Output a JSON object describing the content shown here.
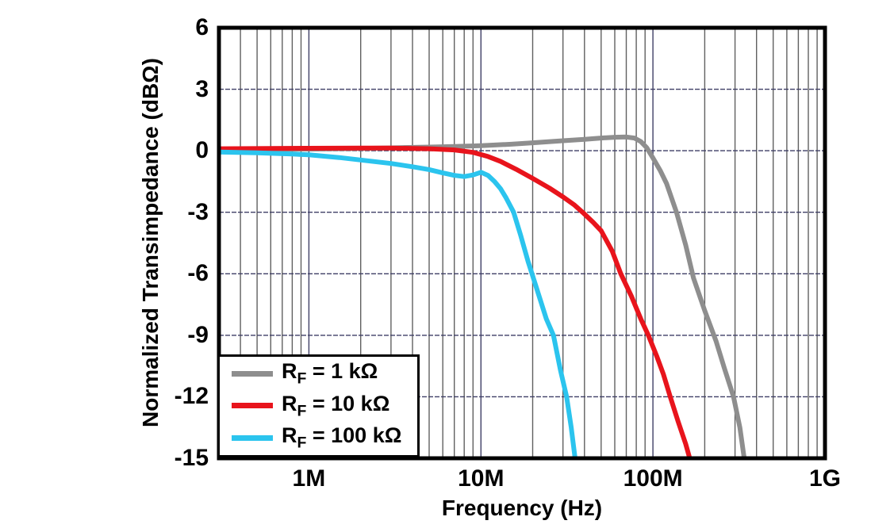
{
  "chart_data": {
    "type": "line",
    "x_axis": {
      "label": "Frequency (Hz)",
      "scale": "log",
      "min": 300000,
      "max": 1000000000,
      "major_ticks": [
        1000000,
        10000000,
        100000000,
        1000000000
      ],
      "tick_labels": [
        "1M",
        "10M",
        "100M",
        "1G"
      ]
    },
    "y_axis": {
      "label": "Normalized Transimpedance (dBΩ)",
      "min": -15,
      "max": 6,
      "tick_step": 3,
      "ticks": [
        6,
        3,
        0,
        -3,
        -6,
        -9,
        -12,
        -15
      ]
    },
    "grid": {
      "minor_color": "#606060",
      "major_color": "#3f3f66",
      "frame_color": "#000000",
      "background": "#ffffff"
    },
    "legend": {
      "position": "bottom-left"
    },
    "series": [
      {
        "name": "RF = 1 kΩ",
        "legend": {
          "base": "R",
          "sub": "F",
          "rest": " = 1 kΩ"
        },
        "color": "#8e8e8e",
        "points": [
          [
            300000,
            0.05
          ],
          [
            500000,
            0.06
          ],
          [
            1000000,
            0.08
          ],
          [
            2000000,
            0.11
          ],
          [
            3000000,
            0.14
          ],
          [
            5000000,
            0.18
          ],
          [
            7000000,
            0.21
          ],
          [
            10000000,
            0.25
          ],
          [
            15000000,
            0.32
          ],
          [
            20000000,
            0.39
          ],
          [
            30000000,
            0.49
          ],
          [
            40000000,
            0.56
          ],
          [
            50000000,
            0.62
          ],
          [
            60000000,
            0.66
          ],
          [
            70000000,
            0.67
          ],
          [
            78000000,
            0.62
          ],
          [
            85000000,
            0.45
          ],
          [
            92000000,
            0.15
          ],
          [
            100000000,
            -0.35
          ],
          [
            110000000,
            -0.95
          ],
          [
            120000000,
            -1.6
          ],
          [
            137000000,
            -3.0
          ],
          [
            155000000,
            -4.6
          ],
          [
            172000000,
            -6.2
          ],
          [
            200000000,
            -7.8
          ],
          [
            233000000,
            -9.3
          ],
          [
            260000000,
            -10.6
          ],
          [
            294000000,
            -12.0
          ],
          [
            320000000,
            -13.5
          ],
          [
            342000000,
            -15.2
          ]
        ]
      },
      {
        "name": "RF = 10 kΩ",
        "legend": {
          "base": "R",
          "sub": "F",
          "rest": " = 10 kΩ"
        },
        "color": "#e8141c",
        "points": [
          [
            300000,
            0.1
          ],
          [
            1000000,
            0.12
          ],
          [
            2000000,
            0.13
          ],
          [
            3000000,
            0.13
          ],
          [
            5000000,
            0.1
          ],
          [
            7000000,
            0.04
          ],
          [
            9000000,
            -0.08
          ],
          [
            11000000,
            -0.28
          ],
          [
            13000000,
            -0.52
          ],
          [
            16000000,
            -0.9
          ],
          [
            20000000,
            -1.35
          ],
          [
            25000000,
            -1.82
          ],
          [
            30000000,
            -2.25
          ],
          [
            35000000,
            -2.65
          ],
          [
            39000000,
            -3.0
          ],
          [
            45000000,
            -3.5
          ],
          [
            50000000,
            -3.9
          ],
          [
            58000000,
            -4.9
          ],
          [
            65000000,
            -6.0
          ],
          [
            75000000,
            -7.1
          ],
          [
            85000000,
            -8.2
          ],
          [
            94000000,
            -9.0
          ],
          [
            105000000,
            -10.0
          ],
          [
            115000000,
            -10.9
          ],
          [
            126000000,
            -12.0
          ],
          [
            140000000,
            -13.2
          ],
          [
            155000000,
            -14.3
          ],
          [
            166000000,
            -15.2
          ]
        ]
      },
      {
        "name": "RF = 100 kΩ",
        "legend": {
          "base": "R",
          "sub": "F",
          "rest": " = 100 kΩ"
        },
        "color": "#2bc4ee",
        "points": [
          [
            300000,
            -0.06
          ],
          [
            500000,
            -0.1
          ],
          [
            800000,
            -0.16
          ],
          [
            1000000,
            -0.2
          ],
          [
            1500000,
            -0.33
          ],
          [
            2000000,
            -0.45
          ],
          [
            3000000,
            -0.62
          ],
          [
            4000000,
            -0.78
          ],
          [
            5000000,
            -0.92
          ],
          [
            6000000,
            -1.08
          ],
          [
            7000000,
            -1.2
          ],
          [
            8000000,
            -1.26
          ],
          [
            9000000,
            -1.18
          ],
          [
            10000000,
            -1.05
          ],
          [
            11000000,
            -1.2
          ],
          [
            12000000,
            -1.5
          ],
          [
            13000000,
            -1.85
          ],
          [
            14000000,
            -2.3
          ],
          [
            15500000,
            -3.0
          ],
          [
            17000000,
            -4.1
          ],
          [
            18800000,
            -5.4
          ],
          [
            20000000,
            -6.1
          ],
          [
            22000000,
            -7.2
          ],
          [
            24000000,
            -8.2
          ],
          [
            26400000,
            -9.0
          ],
          [
            29000000,
            -10.7
          ],
          [
            31500000,
            -12.0
          ],
          [
            33500000,
            -13.5
          ],
          [
            35500000,
            -15.2
          ]
        ]
      }
    ]
  }
}
